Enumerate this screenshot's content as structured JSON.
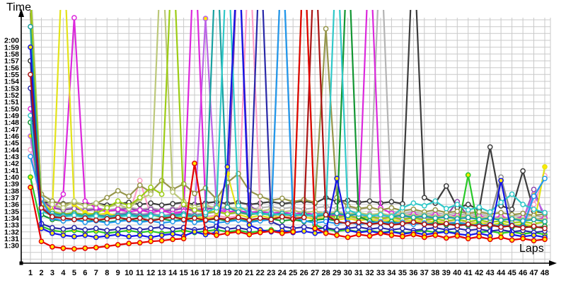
{
  "chart_data": {
    "type": "line",
    "title": "",
    "xlabel": "Laps",
    "ylabel": "Time",
    "grid": true,
    "legend": "none",
    "grid_color": "#c9c9c9",
    "axis_color": "#000000",
    "marker_yellow": "#ffe800",
    "x_ticks": [
      1,
      2,
      3,
      4,
      5,
      6,
      7,
      8,
      9,
      10,
      11,
      12,
      13,
      14,
      15,
      16,
      17,
      18,
      19,
      20,
      21,
      22,
      23,
      24,
      25,
      26,
      27,
      28,
      29,
      30,
      31,
      32,
      33,
      34,
      35,
      36,
      37,
      38,
      39,
      40,
      41,
      42,
      43,
      44,
      45,
      46,
      47,
      48
    ],
    "y_tick_labels": [
      "2:00",
      "1:59",
      "1:58",
      "1:57",
      "1:56",
      "1:55",
      "1:54",
      "1:53",
      "1:52",
      "1:51",
      "1:50",
      "1:49",
      "1:48",
      "1:47",
      "1:46",
      "1:45",
      "1:44",
      "1:43",
      "1:42",
      "1:41",
      "1:40",
      "1:39",
      "1:38",
      "1:37",
      "1:36",
      "1:35",
      "1:34",
      "1:33",
      "1:32",
      "1:31",
      "1:30"
    ],
    "y_tick_seconds_range": [
      90,
      120
    ],
    "ylim_seconds": [
      87.5,
      123.5
    ],
    "offscale_pit_value_s": 135,
    "series": [
      {
        "name": "driver-01",
        "color": "#e60000",
        "marker_fill": "#ffe800",
        "lap_times_s": [
          98.5,
          90.6,
          89.8,
          89.6,
          89.5,
          89.6,
          89.7,
          89.9,
          90.1,
          90.3,
          90.4,
          90.6,
          90.7,
          90.9,
          91.0,
          102.0,
          92.0,
          91.5,
          91.8,
          92.0,
          91.6,
          91.9,
          92.1,
          91.8,
          92.0,
          135,
          92.5,
          91.8,
          91.5,
          91.2,
          91.6,
          91.4,
          91.8,
          91.5,
          91.3,
          91.6,
          91.2,
          91.5,
          91.1,
          91.4,
          91.0,
          91.3,
          90.9,
          91.2,
          90.8,
          91.0,
          90.7,
          90.9
        ]
      },
      {
        "name": "driver-02",
        "color": "#aa1414",
        "marker_fill": "#ffffff",
        "lap_times_s": [
          115,
          95.5,
          94.2,
          94.0,
          93.8,
          94.0,
          93.7,
          93.9,
          94.1,
          93.8,
          94.0,
          93.6,
          93.9,
          94.2,
          93.8,
          94.0,
          93.7,
          94.0,
          93.8,
          94.1,
          93.7,
          94.0,
          93.8,
          94.2,
          93.9,
          94.1,
          135,
          94.5,
          93.5,
          93.2,
          93.4,
          93.1,
          93.3,
          93.0,
          93.2,
          93.4,
          93.1,
          93.0,
          93.2,
          92.9,
          93.1,
          92.8,
          93.0,
          92.7,
          92.9,
          92.6,
          92.8,
          92.5
        ]
      },
      {
        "name": "driver-03",
        "color": "#1414e6",
        "marker_fill": "#ffe800",
        "lap_times_s": [
          119,
          92.5,
          91.8,
          91.5,
          91.3,
          91.5,
          91.2,
          91.4,
          91.6,
          91.3,
          91.5,
          91.2,
          91.5,
          91.7,
          91.4,
          92.0,
          91.6,
          91.9,
          101.5,
          135,
          93.0,
          92.3,
          92.0,
          92.2,
          91.9,
          92.1,
          91.8,
          92.0,
          99.8,
          92.2,
          91.9,
          92.1,
          91.8,
          92.0,
          91.7,
          91.9,
          91.6,
          91.8,
          92.0,
          91.7,
          91.5,
          91.8,
          91.4,
          99.5,
          91.6,
          91.3,
          91.5,
          91.2
        ]
      },
      {
        "name": "driver-04",
        "color": "#2828a8",
        "marker_fill": "#ffffff",
        "lap_times_s": [
          113,
          93.2,
          92.6,
          92.4,
          92.6,
          92.3,
          92.5,
          92.2,
          92.4,
          92.6,
          92.3,
          92.5,
          92.7,
          92.4,
          92.6,
          92.3,
          92.5,
          92.8,
          92.4,
          92.6,
          92.3,
          135,
          93.5,
          92.8,
          92.5,
          92.7,
          92.4,
          92.6,
          92.3,
          92.5,
          92.7,
          92.4,
          92.6,
          92.3,
          92.5,
          92.2,
          92.4,
          92.6,
          92.3,
          92.5,
          92.2,
          92.4,
          92.1,
          92.3,
          92.0,
          92.2,
          91.9,
          92.1
        ]
      },
      {
        "name": "driver-05",
        "color": "#2299ee",
        "marker_fill": "#ffffff",
        "lap_times_s": [
          103,
          96.8,
          94.0,
          93.6,
          93.8,
          93.4,
          93.6,
          93.3,
          93.5,
          93.7,
          93.4,
          93.6,
          93.3,
          93.5,
          93.7,
          93.4,
          93.6,
          93.3,
          93.5,
          93.7,
          93.4,
          93.6,
          93.8,
          135,
          94.2,
          93.6,
          93.3,
          93.5,
          93.2,
          93.4,
          93.1,
          93.3,
          93.5,
          93.2,
          93.4,
          93.1,
          93.3,
          93.0,
          93.2,
          93.4,
          93.1,
          92.9,
          93.1,
          92.8,
          93.0,
          92.7,
          97.2,
          99.8
        ]
      },
      {
        "name": "driver-06",
        "color": "#30c8c8",
        "marker_fill": "#ffffff",
        "lap_times_s": [
          109,
          95.0,
          94.4,
          94.2,
          94.4,
          94.1,
          94.3,
          94.0,
          94.2,
          94.4,
          94.1,
          94.3,
          94.5,
          94.2,
          94.4,
          94.1,
          94.8,
          95.5,
          135,
          95.8,
          94.8,
          94.5,
          94.7,
          94.4,
          94.6,
          94.3,
          94.5,
          94.7,
          135,
          95.2,
          94.6,
          94.3,
          94.5,
          94.2,
          95.5,
          96.2,
          95.8,
          96.5,
          95.4,
          96.0,
          95.2,
          95.6,
          94.9,
          96.3,
          97.5,
          96.0,
          95.3,
          94.8
        ]
      },
      {
        "name": "driver-07",
        "color": "#18a0a0",
        "marker_fill": "#ffffff",
        "lap_times_s": [
          122,
          95.3,
          94.7,
          94.4,
          94.6,
          94.3,
          94.5,
          94.2,
          94.4,
          94.6,
          94.3,
          94.5,
          94.2,
          94.4,
          94.6,
          94.3,
          94.5,
          135,
          95.6,
          94.9,
          94.6,
          94.8,
          94.5,
          94.7,
          94.4,
          94.6,
          94.3,
          94.5,
          94.7,
          94.4,
          94.6,
          94.3,
          94.5,
          94.2,
          94.4,
          94.1,
          94.3,
          94.0,
          94.2,
          93.9,
          94.1,
          93.8,
          94.0,
          93.7,
          93.9,
          93.6,
          93.8,
          93.5
        ]
      },
      {
        "name": "driver-08",
        "color": "#28c828",
        "marker_fill": "#ffe800",
        "lap_times_s": [
          100,
          92.8,
          92.2,
          92.0,
          92.2,
          91.9,
          92.1,
          91.8,
          92.0,
          92.2,
          91.9,
          92.1,
          91.8,
          92.0,
          92.2,
          91.9,
          92.1,
          92.3,
          92.0,
          92.2,
          91.9,
          92.1,
          92.3,
          92.0,
          92.2,
          135,
          93.0,
          92.4,
          92.1,
          92.3,
          92.0,
          92.2,
          91.9,
          92.1,
          91.8,
          92.0,
          92.2,
          91.9,
          92.1,
          91.8,
          100.3,
          91.9,
          92.1,
          91.8,
          92.0,
          91.7,
          91.9,
          91.6
        ]
      },
      {
        "name": "driver-09",
        "color": "#129632",
        "marker_fill": "#ffffff",
        "lap_times_s": [
          108,
          94.5,
          93.8,
          93.6,
          93.8,
          93.5,
          93.7,
          93.4,
          93.6,
          93.8,
          93.5,
          93.7,
          93.9,
          93.6,
          93.8,
          93.5,
          93.7,
          93.9,
          93.6,
          93.8,
          93.5,
          93.7,
          93.9,
          93.6,
          93.8,
          93.5,
          93.7,
          93.9,
          93.6,
          135,
          94.2,
          93.6,
          93.3,
          93.5,
          93.2,
          93.4,
          93.1,
          93.3,
          93.0,
          93.2,
          92.9,
          93.1,
          92.8,
          93.0,
          92.7,
          92.9,
          92.6,
          92.8
        ]
      },
      {
        "name": "driver-10",
        "color": "#9ccc14",
        "marker_fill": "#ffffff",
        "lap_times_s": [
          126,
          96.0,
          95.0,
          94.5,
          94.8,
          94.4,
          94.7,
          95.5,
          96.5,
          95.8,
          97.0,
          98.5,
          97.5,
          135,
          96.0,
          95.2,
          94.8,
          95.0,
          94.6,
          94.9,
          94.5,
          94.8,
          94.4,
          94.6,
          94.3,
          94.5,
          94.2,
          94.4,
          94.1,
          94.3,
          94.0,
          94.2,
          93.9,
          94.1,
          93.8,
          94.0,
          93.7,
          93.9,
          93.6,
          93.8,
          93.5,
          93.7,
          93.4,
          93.6,
          93.3,
          93.5,
          93.2,
          93.4
        ]
      },
      {
        "name": "driver-11",
        "color": "#bcc87a",
        "marker_fill": "#ffffff",
        "lap_times_s": [
          128,
          97.0,
          96.0,
          95.5,
          96.5,
          95.8,
          96.2,
          95.6,
          96.0,
          95.4,
          96.8,
          97.5,
          135,
          97.8,
          96.4,
          95.6,
          95.9,
          95.4,
          95.7,
          95.2,
          95.5,
          95.0,
          95.3,
          94.9,
          95.1,
          94.8,
          95.0,
          94.7,
          94.9,
          94.6,
          94.8,
          94.5,
          94.7,
          94.4,
          94.6,
          94.3,
          94.5,
          94.2,
          94.4,
          94.1,
          94.3,
          94.0,
          94.2,
          93.9,
          94.1,
          93.8,
          94.0,
          93.7
        ]
      },
      {
        "name": "driver-12",
        "color": "#96964b",
        "marker_fill": "#ffffff",
        "lap_times_s": [
          124,
          97.5,
          96.5,
          96.0,
          96.3,
          95.8,
          96.1,
          97.0,
          98.0,
          97.2,
          98.8,
          97.8,
          99.5,
          98.2,
          99.0,
          97.6,
          98.4,
          96.8,
          99.2,
          100.5,
          98.0,
          97.2,
          96.6,
          96.9,
          96.4,
          96.7,
          96.3,
          121.7,
          97.0,
          95.8,
          95.4,
          95.6,
          95.2,
          95.5,
          95.1,
          95.3,
          94.9,
          95.2,
          94.8,
          95.0,
          94.7,
          94.9,
          94.6,
          94.8,
          94.5,
          94.7,
          94.4,
          94.6
        ]
      },
      {
        "name": "driver-13",
        "color": "#e3e31a",
        "marker_fill": "#ffe800",
        "lap_times_s": [
          127,
          96.5,
          95.0,
          135,
          96.0,
          94.8,
          94.5,
          94.7,
          94.3,
          94.6,
          94.2,
          94.5,
          94.1,
          94.4,
          94.0,
          94.3,
          93.9,
          94.2,
          100.5,
          94.5,
          94.1,
          94.4,
          94.0,
          94.3,
          93.9,
          94.2,
          93.8,
          94.1,
          93.7,
          94.0,
          93.6,
          93.9,
          93.5,
          93.8,
          93.4,
          93.7,
          93.3,
          93.6,
          93.2,
          93.5,
          93.1,
          93.4,
          93.0,
          93.3,
          92.9,
          93.2,
          92.8,
          101.5
        ]
      },
      {
        "name": "driver-14",
        "color": "#dc28dc",
        "marker_fill": "#ffffff",
        "lap_times_s": [
          110,
          96.0,
          95.0,
          97.5,
          123.3,
          96.5,
          95.5,
          95.0,
          95.3,
          94.9,
          95.2,
          94.8,
          95.1,
          94.7,
          95.0,
          135,
          96.0,
          95.2,
          94.9,
          95.1,
          94.8,
          95.0,
          94.7,
          94.9,
          94.6,
          94.8,
          94.5,
          94.7,
          94.4,
          94.6,
          94.8,
          135,
          95.5,
          94.7,
          94.4,
          94.6,
          94.3,
          94.5,
          94.2,
          94.4,
          94.1,
          94.3,
          94.0,
          94.2,
          93.9,
          94.1,
          93.8,
          94.0
        ]
      },
      {
        "name": "driver-15",
        "color": "#bc64e6",
        "marker_fill": "#ffe800",
        "lap_times_s": [
          106,
          95.5,
          94.8,
          94.5,
          94.7,
          94.4,
          94.6,
          94.3,
          94.5,
          94.7,
          94.4,
          94.6,
          94.3,
          94.5,
          94.7,
          94.4,
          123.2,
          95.8,
          95.0,
          94.7,
          94.9,
          94.6,
          94.8,
          94.5,
          94.7,
          94.4,
          94.6,
          94.8,
          94.5,
          94.7,
          94.4,
          94.6,
          94.3,
          94.5,
          94.2,
          94.4,
          94.1,
          94.3,
          94.0,
          94.2,
          93.9,
          94.1,
          93.8,
          94.0,
          93.7,
          93.9,
          97.5,
          94.5
        ]
      },
      {
        "name": "driver-16",
        "color": "#8c46aa",
        "marker_fill": "#ffffff",
        "lap_times_s": [
          125,
          96.5,
          95.5,
          95.2,
          95.4,
          95.1,
          95.3,
          95.0,
          95.2,
          95.4,
          95.1,
          95.3,
          95.0,
          95.2,
          95.4,
          95.1,
          95.3,
          95.5,
          95.2,
          135,
          95.8,
          94.9,
          94.6,
          94.8,
          94.5,
          94.7,
          94.4,
          94.6,
          94.3,
          94.5,
          94.7,
          94.4,
          94.6,
          94.3,
          94.5,
          94.2,
          94.4,
          94.1,
          94.3,
          96.4,
          94.2,
          93.9,
          94.1,
          93.8,
          94.0,
          93.7,
          98.2,
          93.9
        ]
      },
      {
        "name": "driver-17",
        "color": "#ff9ec8",
        "marker_fill": "#ffffff",
        "lap_times_s": [
          104,
          95.2,
          94.6,
          94.3,
          94.5,
          94.2,
          94.4,
          94.1,
          94.3,
          94.5,
          99.5,
          94.4,
          94.6,
          94.3,
          96.5,
          94.5,
          94.2,
          94.4,
          94.1,
          94.3,
          135,
          95.0,
          94.4,
          94.1,
          94.3,
          94.0,
          94.2,
          93.9,
          94.1,
          93.8,
          94.0,
          93.7,
          93.9,
          93.6,
          93.8,
          93.5,
          93.7,
          93.4,
          93.6,
          93.3,
          93.5,
          93.2,
          93.4,
          94.5,
          93.3,
          93.5,
          96.0,
          100.2
        ]
      },
      {
        "name": "driver-18",
        "color": "#8c8c8c",
        "marker_fill": "#ffffff",
        "lap_times_s": [
          124,
          95.5,
          94.9,
          94.6,
          94.8,
          94.5,
          94.7,
          94.4,
          94.6,
          94.8,
          94.5,
          94.7,
          94.4,
          94.6,
          94.8,
          94.5,
          94.7,
          94.9,
          94.6,
          94.8,
          94.5,
          94.7,
          94.4,
          135,
          95.2,
          94.6,
          94.3,
          94.5,
          94.2,
          94.4,
          94.1,
          94.3,
          94.0,
          94.2,
          93.9,
          94.1,
          93.8,
          94.0,
          94.2,
          93.9,
          94.1,
          93.8,
          94.0,
          100.0,
          93.9,
          94.1,
          93.8,
          94.0
        ]
      },
      {
        "name": "driver-19",
        "color": "#3c3c3c",
        "marker_fill": "#ffffff",
        "lap_times_s": [
          117,
          96.2,
          96.4,
          96.1,
          96.3,
          96.0,
          96.2,
          95.9,
          96.1,
          96.3,
          96.0,
          96.2,
          95.9,
          96.1,
          96.3,
          96.0,
          96.2,
          96.4,
          96.1,
          96.3,
          96.0,
          96.2,
          96.4,
          96.1,
          96.3,
          96.5,
          96.2,
          97.0,
          96.4,
          96.6,
          96.3,
          96.5,
          96.2,
          96.4,
          96.1,
          135,
          97.0,
          96.2,
          98.7,
          95.5,
          96.0,
          95.2,
          104.4,
          95.8,
          95.3,
          100.9,
          95.0,
          94.8
        ]
      },
      {
        "name": "driver-20",
        "color": "#b4b4b4",
        "marker_fill": "#ffffff",
        "lap_times_s": [
          129,
          96.8,
          95.8,
          95.4,
          95.6,
          95.3,
          95.5,
          95.2,
          95.4,
          95.6,
          95.3,
          95.5,
          95.2,
          95.4,
          95.6,
          95.3,
          95.5,
          95.7,
          95.4,
          95.6,
          95.3,
          95.5,
          95.7,
          95.4,
          95.6,
          95.3,
          95.5,
          95.7,
          95.4,
          95.6,
          95.3,
          95.5,
          135,
          95.0,
          94.7,
          94.9,
          94.6,
          94.8,
          94.5,
          94.7,
          94.4,
          94.6,
          94.3,
          99.6,
          94.4,
          94.2,
          94.4,
          94.1
        ]
      }
    ]
  }
}
